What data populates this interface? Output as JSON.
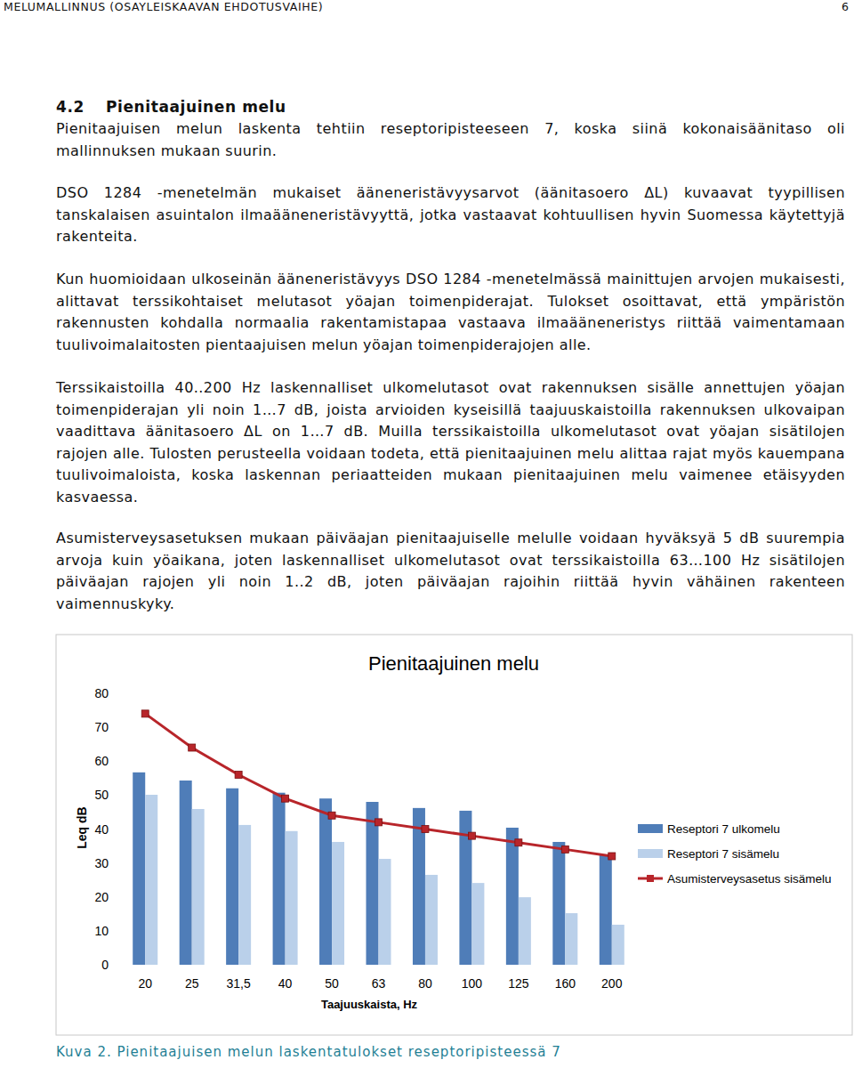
{
  "header": {
    "title": "MELUMALLINNUS (OSAYLEISKAAVAN EHDOTUSVAIHE)",
    "page": "6"
  },
  "section": {
    "number": "4.2",
    "title": "Pienitaajuinen melu"
  },
  "paragraphs": [
    "Pienitaajuisen melun laskenta tehtiin reseptoripisteeseen 7, koska siinä kokonaisäänitaso oli mallinnuksen mukaan suurin.",
    "DSO 1284 -menetelmän mukaiset ääneneristävyysarvot (äänitasoero ΔL) kuvaavat tyypillisen tanskalaisen asuintalon ilmaääneneristävyyttä, jotka vastaavat kohtuullisen hyvin Suomessa käytettyjä rakenteita.",
    "Kun huomioidaan ulkoseinän ääneneristävyys DSO 1284 -menetelmässä mainittujen arvojen mukaisesti, alittavat terssikohtaiset melutasot yöajan toimenpiderajat. Tulokset osoittavat, että ympäristön rakennusten kohdalla normaalia rakentamistapaa vastaava ilmaääneneristys riittää vaimentamaan tuulivoimalaitosten pientaajuisen melun yöajan toimenpiderajojen alle.",
    "Terssikaistoilla 40..200 Hz laskennalliset ulkomelutasot ovat rakennuksen sisälle annettujen yöajan toimenpiderajan yli noin 1…7 dB, joista arvioiden kyseisillä taajuuskaistoilla rakennuksen ulkovaipan vaadittava äänitasoero ΔL on 1…7 dB. Muilla terssikaistoilla ulkomelutasot ovat yöajan sisätilojen rajojen alle. Tulosten perusteella voidaan todeta, että pienitaajuinen melu alittaa rajat myös kauempana tuulivoimaloista, koska laskennan periaatteiden mukaan pienitaajuinen melu vaimenee etäisyyden kasvaessa.",
    "Asumisterveysasetuksen mukaan päiväajan pienitaajuiselle melulle voidaan hyväksyä 5 dB suurempia arvoja kuin yöaikana, joten laskennalliset ulkomelutasot ovat terssikaistoilla 63…100 Hz sisätilojen päiväajan rajojen yli noin 1..2 dB, joten päiväajan rajoihin riittää hyvin vähäinen rakenteen vaimennuskyky."
  ],
  "caption": "Kuva 2. Pienitaajuisen melun laskentatulokset reseptoripisteessä 7",
  "chart_data": {
    "type": "bar",
    "title": "Pienitaajuinen melu",
    "x_label": "Taajuuskaista, Hz",
    "y_label": "Leq dB",
    "categories": [
      "20",
      "25",
      "31,5",
      "40",
      "50",
      "63",
      "80",
      "100",
      "125",
      "160",
      "200"
    ],
    "series": [
      {
        "name": "Reseptori 7 ulkomelu",
        "type": "bar",
        "color": "#4f7db8",
        "values": [
          56.7,
          54.3,
          52.0,
          50.7,
          49.0,
          48.0,
          46.2,
          45.4,
          40.4,
          36.2,
          32.5
        ]
      },
      {
        "name": "Reseptori 7 sisämelu",
        "type": "bar",
        "color": "#bad0ea",
        "values": [
          50.1,
          45.9,
          41.2,
          39.4,
          36.2,
          31.2,
          26.5,
          24.1,
          19.9,
          15.2,
          11.8
        ]
      },
      {
        "name": "Asumisterveysasetus sisämelu",
        "type": "line",
        "color": "#b8252a",
        "marker": "square",
        "values": [
          74,
          64,
          56,
          49,
          44,
          42,
          40,
          38,
          36,
          34,
          32
        ]
      }
    ],
    "ylim": [
      0,
      80
    ],
    "yticks": [
      0,
      10,
      20,
      30,
      40,
      50,
      60,
      70,
      80
    ],
    "grid": false,
    "legend": "right"
  }
}
